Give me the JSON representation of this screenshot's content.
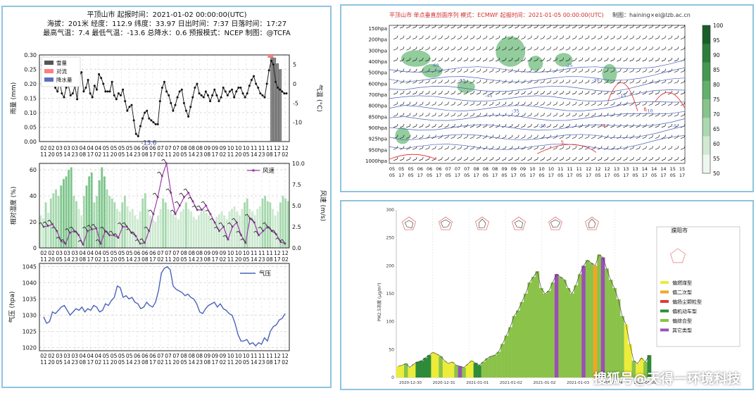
{
  "left_panel": {
    "title": "平顶山市  起报时间：2021-01-02 00:00:00(UTC)",
    "line2": "海拔：201米 经度：112.9  纬度：33.97  日出时间：7:37  日落时间：17:27",
    "line3": "最高气温：7.4  最低气温：-13.6 总降水：0.6   预报模式：NCEP    制图：@TCFA",
    "x_day_labels": [
      "02",
      "02",
      "03",
      "03",
      "03",
      "03",
      "04",
      "04",
      "04",
      "04",
      "05",
      "05",
      "05",
      "05",
      "06",
      "06",
      "06",
      "06",
      "07",
      "07",
      "07",
      "07",
      "08",
      "08",
      "08",
      "08",
      "09",
      "09",
      "09",
      "09",
      "10",
      "10",
      "10",
      "10",
      "11",
      "11",
      "11",
      "11",
      "12",
      "12"
    ],
    "x_hour_labels": [
      "11",
      "20",
      "05",
      "14",
      "23",
      "08",
      "17",
      "02",
      "11",
      "20",
      "05",
      "14",
      "23",
      "08",
      "17",
      "02",
      "11",
      "20",
      "05",
      "14",
      "23",
      "08",
      "17",
      "02",
      "11",
      "20",
      "05",
      "14",
      "23",
      "08",
      "17",
      "02",
      "11",
      "20",
      "05",
      "14",
      "23",
      "08",
      "17",
      "02"
    ],
    "x_day_labels_short": [
      "02",
      "02",
      "03",
      "03",
      "03",
      "04",
      "04",
      "04",
      "05",
      "05",
      "05",
      "05",
      "06",
      "06",
      "06",
      "07",
      "07",
      "07",
      "08",
      "08",
      "08",
      "09",
      "09",
      "09",
      "10",
      "10",
      "10",
      "11",
      "11",
      "11",
      "12",
      "12"
    ],
    "x_hour_labels_short": [
      "11",
      "20",
      "05",
      "14",
      "23",
      "08",
      "17",
      "02",
      "11",
      "20",
      "05",
      "14",
      "23",
      "08",
      "17",
      "02",
      "11",
      "20",
      "05",
      "14",
      "23",
      "08",
      "17",
      "02",
      "11",
      "20",
      "05",
      "14",
      "23",
      "08",
      "17",
      "02",
      "11",
      "20"
    ]
  },
  "chart_data": [
    {
      "type": "line",
      "title": "平顶山市  起报时间：2021-01-02 00:00:00(UTC)",
      "ylabel": "雨量 (mm)",
      "y2label": "气温 (°C)",
      "ylim": [
        0,
        0.3
      ],
      "y2lim": [
        -15,
        7.5
      ],
      "yticks": [
        "0.00",
        "0.05",
        "0.10",
        "0.15",
        "0.20",
        "0.25",
        "0.30"
      ],
      "y2ticks": [
        "5",
        "0",
        "-5",
        "-10"
      ],
      "legend": [
        "雪量",
        "对流",
        "降水量"
      ],
      "legend_colors": [
        "#555555",
        "#ff7d7d",
        "#5a6fc4"
      ],
      "annotation": "-13.6",
      "series": [
        {
          "name": "气温",
          "values": [
            4.8,
            4.2,
            5.5,
            3.0,
            1.2,
            2.0,
            -1.0,
            -2.0,
            0.5,
            -2.5,
            -3.5,
            -1.0,
            -0.5,
            -3.0,
            -2.5,
            -0.5,
            -4.0,
            2.0,
            3.0,
            -2.0,
            -1.0,
            1.0,
            -2.5,
            -3.5,
            -0.5,
            -1.5,
            2.5,
            1.5,
            0.0,
            -2.0,
            -2.0,
            -2.0,
            0.5,
            -3.0,
            -4.0,
            -2.5,
            -3.0,
            -1.5,
            -4.5,
            -7.0,
            -6.0,
            -5.5,
            -9.5,
            -13.0,
            -13.6,
            -11.0,
            -9.0,
            -7.5,
            -7.0,
            -9.0,
            -9.5,
            -10.0,
            -10.5,
            -10.5,
            -4.5,
            -1.0,
            0.5,
            -2.0,
            -3.0,
            -5.0,
            -7.0,
            -5.5,
            -3.5,
            -2.0,
            -1.5,
            -5.0,
            -7.0,
            -8.5,
            -6.0,
            -3.5,
            -1.0,
            0.0,
            -2.5,
            -3.0,
            -3.5,
            -2.0,
            -3.0,
            -4.5,
            -3.0,
            -1.5,
            -3.0,
            -4.5,
            -3.5,
            -1.0,
            -2.0,
            -3.0,
            -2.0,
            -1.5,
            -3.5,
            -2.0,
            -1.0,
            -1.0,
            -2.5,
            -3.5,
            -2.5,
            -0.5,
            1.0,
            2.0,
            0.0,
            -1.0,
            -2.5,
            -3.0,
            -3.5,
            0.0,
            3.5,
            6.0,
            5.0,
            0.5,
            -1.0,
            -1.5,
            -2.0,
            -2.5,
            -2.5
          ]
        },
        {
          "name": "雪量",
          "values": [
            0.29,
            0.29,
            0.27,
            0.25
          ]
        }
      ]
    },
    {
      "type": "bar",
      "ylabel": "相对湿度 (%)",
      "y2label": "风速 (m/s)",
      "ylim": [
        0,
        65
      ],
      "y2lim": [
        0,
        10.0
      ],
      "yticks": [
        "0",
        "20",
        "40",
        "60"
      ],
      "y2ticks": [
        "0.0",
        "2.5",
        "5.0",
        "7.5",
        "10.0"
      ],
      "legend": [
        "风速"
      ],
      "series": [
        {
          "name": "相对湿度",
          "values": [
            25,
            23,
            35,
            27,
            38,
            42,
            45,
            40,
            48,
            53,
            55,
            60,
            62,
            40,
            36,
            30,
            25,
            40,
            48,
            55,
            58,
            35,
            40,
            52,
            62,
            55,
            45,
            40,
            38,
            35,
            30,
            28,
            35,
            40,
            32,
            28,
            30,
            25,
            22,
            28,
            38,
            42,
            30,
            25,
            22,
            20,
            25,
            30,
            38,
            35,
            30,
            28,
            26,
            24,
            22,
            28,
            30,
            35,
            30,
            28,
            24,
            22,
            25,
            28,
            30,
            27,
            25,
            22,
            20,
            24,
            26,
            28,
            25,
            22,
            28,
            30,
            32,
            28,
            25,
            30,
            35,
            38,
            30,
            28,
            25,
            30,
            32,
            38,
            40,
            36,
            35,
            30,
            25,
            28,
            35,
            40,
            38,
            36
          ]
        },
        {
          "name": "风速",
          "values": [
            2.5,
            2.6,
            2.8,
            2.0,
            0.8,
            0.5,
            1.8,
            2.0,
            1.5,
            0.4,
            2.0,
            2.2,
            2.3,
            0.5,
            2.0,
            1.5,
            1.5,
            1.2,
            2.5,
            2.5,
            1.8,
            1.4,
            0.5,
            0.6,
            2.0,
            4.0,
            6.0,
            8.5,
            10.0,
            6.5,
            4.0,
            5.0,
            6.0,
            6.5,
            5.5,
            4.5,
            4.5,
            5.0,
            4.0,
            3.0,
            2.0,
            2.5,
            1.0,
            2.5,
            3.0,
            1.5,
            0.6,
            3.5,
            3.0,
            1.5,
            2.0,
            2.5,
            2.0,
            1.6,
            0.7,
            0.5
          ]
        }
      ]
    },
    {
      "type": "line",
      "ylabel": "气压 (hpa)",
      "ylim": [
        1019,
        1046
      ],
      "yticks": [
        "1020",
        "1025",
        "1030",
        "1035",
        "1040",
        "1045"
      ],
      "legend": [
        "气压"
      ],
      "series": [
        {
          "name": "气压",
          "values": [
            1029.5,
            1027.5,
            1028.0,
            1031.0,
            1030.5,
            1031.5,
            1032.5,
            1033.0,
            1031.5,
            1030.0,
            1031.0,
            1032.0,
            1031.5,
            1032.5,
            1031.0,
            1032.0,
            1031.5,
            1033.0,
            1032.5,
            1031.0,
            1031.5,
            1033.5,
            1033.0,
            1034.5,
            1035.5,
            1039.0,
            1038.5,
            1035.5,
            1036.0,
            1035.0,
            1035.5,
            1034.0,
            1033.5,
            1032.0,
            1032.5,
            1034.0,
            1033.0,
            1032.5,
            1034.0,
            1037.5,
            1043.0,
            1044.5,
            1045.0,
            1044.0,
            1039.0,
            1038.0,
            1037.5,
            1037.0,
            1036.0,
            1036.5,
            1035.5,
            1035.0,
            1033.5,
            1031.0,
            1030.5,
            1032.0,
            1033.0,
            1033.5,
            1034.0,
            1032.5,
            1033.5,
            1032.0,
            1031.5,
            1030.5,
            1030.0,
            1027.5,
            1024.0,
            1022.0,
            1022.0,
            1022.5,
            1021.0,
            1021.5,
            1020.5,
            1021.5,
            1021.0,
            1023.0,
            1022.0,
            1025.0,
            1026.5,
            1027.0,
            1028.5,
            1029.0,
            1030.5
          ]
        }
      ]
    },
    {
      "type": "heatmap",
      "title": "平顶山市  单点垂直剖面序列  模式：ECMWF  起报时间：2021-01-05 00:00:00(UTC)",
      "credit": "制图：haining×ei@lzb.ac.cn",
      "yticks": [
        "150hpa",
        "200hpa",
        "300hpa",
        "400hpa",
        "500hpa",
        "600hpa",
        "700hpa",
        "800hpa",
        "850hpa",
        "900hpa",
        "925hpa",
        "950hpa",
        "1000hpa"
      ],
      "x_day_labels": [
        "05",
        "05",
        "05",
        "06",
        "06",
        "06",
        "07",
        "07",
        "07",
        "08",
        "08",
        "08",
        "09",
        "09",
        "09",
        "10",
        "10",
        "10",
        "11",
        "11",
        "11",
        "12",
        "12",
        "12",
        "13",
        "13",
        "13",
        "14",
        "14",
        "14",
        "15",
        "15"
      ],
      "x_hour_labels": [
        "05",
        "17",
        "05",
        "17",
        "05",
        "17",
        "05",
        "17",
        "05",
        "17",
        "05",
        "17",
        "05",
        "17",
        "05",
        "17",
        "05",
        "17",
        "05",
        "17",
        "05",
        "17",
        "05",
        "17",
        "05",
        "17",
        "05",
        "17",
        "05",
        "17",
        "05",
        "17"
      ],
      "colorbar_ticks": [
        "100",
        "95",
        "90",
        "85",
        "80",
        "75",
        "70",
        "65",
        "60",
        "55",
        "50"
      ],
      "colorbar_range": [
        50,
        100
      ],
      "contour_labels_blue": [
        "-60",
        "-55",
        "-45",
        "-35",
        "-30",
        "-25",
        "-20",
        "-15",
        "-10",
        "-5"
      ],
      "contour_labels_red": [
        "5",
        "4",
        "6"
      ]
    },
    {
      "type": "bar",
      "ylabel": "PM2.5浓度 (μg/m³)",
      "yticks": [
        "0",
        "50",
        "100",
        "150",
        "200",
        "250",
        "300"
      ],
      "ylim": [
        0,
        300
      ],
      "x_labels": [
        "2020-12-30",
        "2020-12-31",
        "2021-01-01",
        "2021-01-02",
        "2021-01-02",
        "2021-01-03",
        "2021-01-04",
        "2021-01-05"
      ],
      "legend_title": "濮阳市",
      "legend": [
        "偏燃煤型",
        "偏二次型",
        "偏扬尘颗粒型",
        "偏机动车型",
        "偏综合型",
        "其它类型"
      ],
      "legend_colors": [
        "#ecec3a",
        "#f5a623",
        "#e53935",
        "#2e8b3a",
        "#8bc34a",
        "#9c4fb5"
      ],
      "series": [
        {
          "name": "PM2.5",
          "values": [
            20,
            22,
            25,
            18,
            24,
            28,
            30,
            35,
            40,
            45,
            42,
            38,
            30,
            25,
            28,
            22,
            20,
            18,
            24,
            30,
            26,
            22,
            28,
            34,
            38,
            40,
            46,
            60,
            75,
            90,
            110,
            120,
            135,
            150,
            170,
            180,
            190,
            160,
            150,
            155,
            170,
            185,
            180,
            175,
            160,
            150,
            165,
            185,
            200,
            210,
            205,
            200,
            220,
            215,
            195,
            175,
            160,
            140,
            110,
            95,
            60,
            30,
            25,
            35,
            28,
            40
          ]
        },
        {
          "name": "category",
          "values": [
            0,
            0,
            4,
            0,
            0,
            3,
            3,
            3,
            3,
            0,
            0,
            4,
            0,
            0,
            0,
            4,
            5,
            4,
            0,
            0,
            3,
            3,
            4,
            4,
            4,
            4,
            4,
            4,
            4,
            4,
            4,
            4,
            4,
            4,
            4,
            4,
            4,
            4,
            4,
            4,
            4,
            5,
            4,
            4,
            4,
            4,
            4,
            4,
            5,
            4,
            4,
            1,
            4,
            5,
            4,
            4,
            4,
            4,
            4,
            0,
            0,
            4,
            0,
            0,
            4,
            3
          ]
        }
      ]
    }
  ],
  "watermark": "搜狐号@天得一环境科技"
}
